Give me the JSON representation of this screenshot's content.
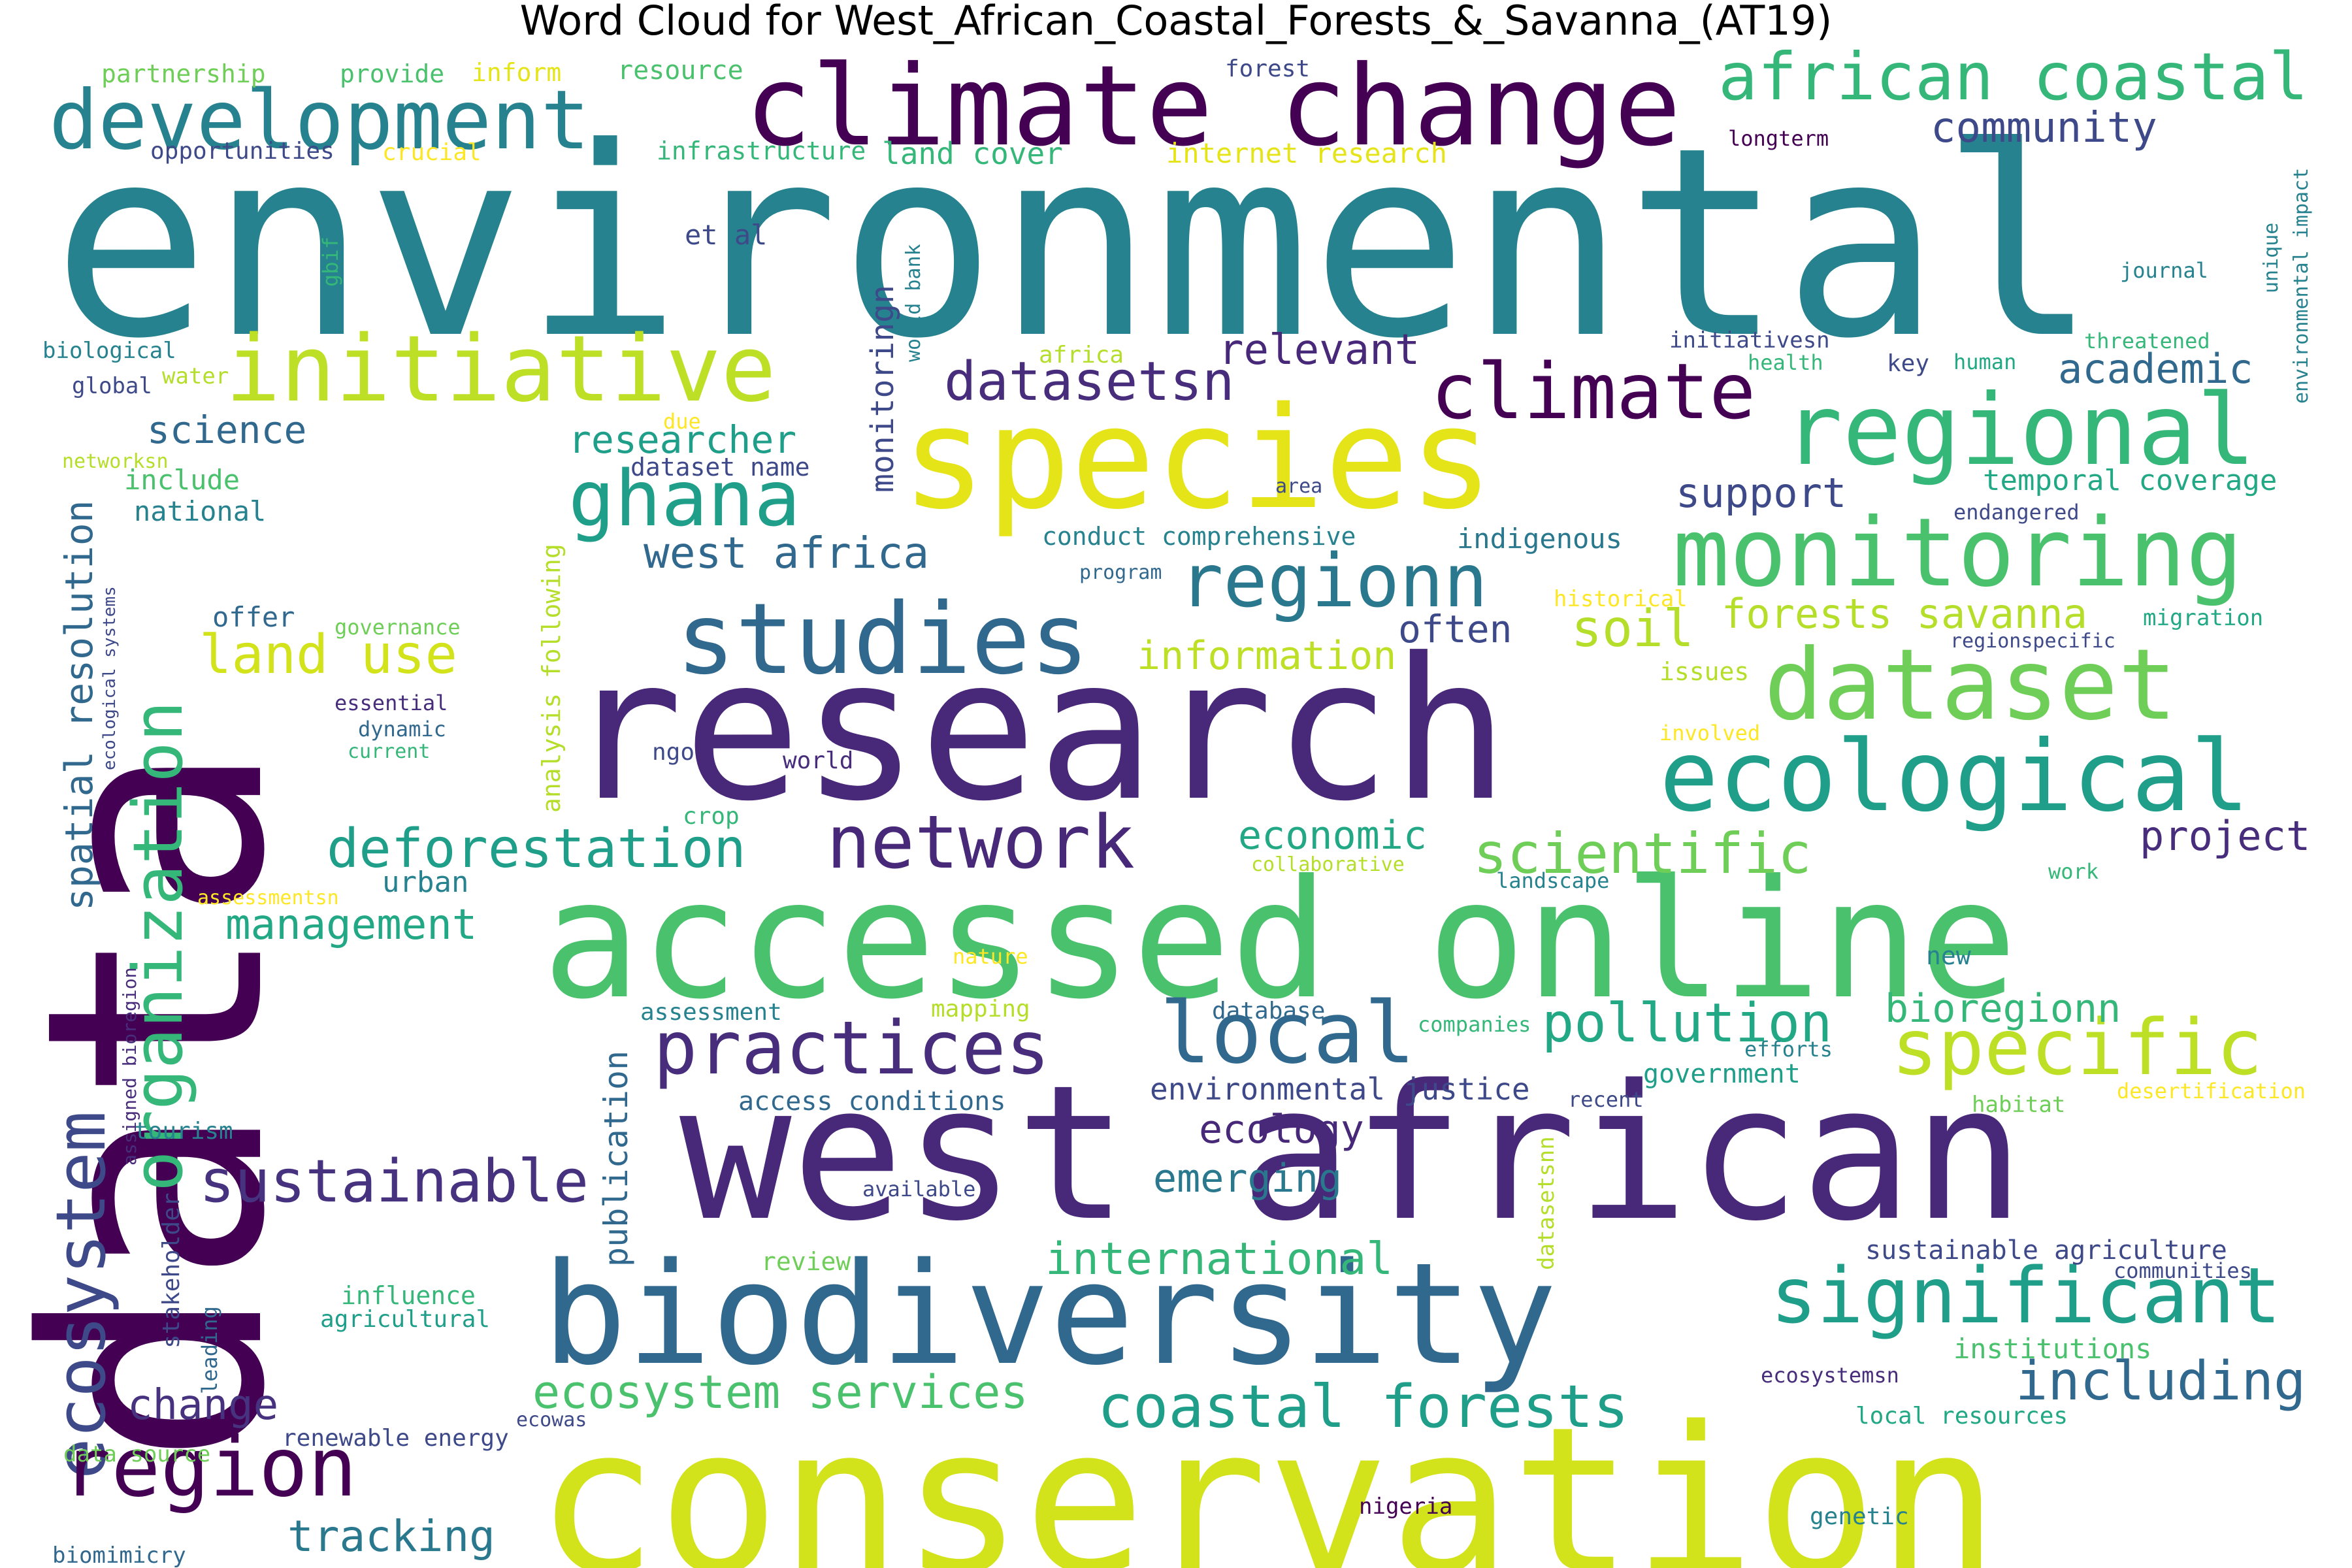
{
  "title": "Word Cloud for West_African_Coastal_Forests_&_Savanna_(AT19)",
  "palette": {
    "dark_purple": "#440154",
    "indigo": "#482878",
    "blue": "#3e4989",
    "steel_blue": "#31688e",
    "teal": "#26828e",
    "green_teal": "#1f9e89",
    "green": "#35b779",
    "light_green": "#6ece58",
    "yellow_green": "#b5de2b",
    "yellow": "#fde725"
  },
  "words": [
    {
      "text": "environmental",
      "color": "#26828e"
    },
    {
      "text": "data",
      "color": "#440154"
    },
    {
      "text": "research",
      "color": "#482878"
    },
    {
      "text": "accessed online",
      "color": "#4ac16d"
    },
    {
      "text": "conservation",
      "color": "#d2e21b"
    },
    {
      "text": "west african",
      "color": "#482878"
    },
    {
      "text": "biodiversity",
      "color": "#31688e"
    },
    {
      "text": "species",
      "color": "#e5e419"
    },
    {
      "text": "climate change",
      "color": "#440154"
    },
    {
      "text": "development",
      "color": "#26828e"
    },
    {
      "text": "initiative",
      "color": "#bddf26"
    },
    {
      "text": "regional",
      "color": "#35b779"
    },
    {
      "text": "monitoring",
      "color": "#4ac16d"
    },
    {
      "text": "dataset",
      "color": "#6ece58"
    },
    {
      "text": "ecological",
      "color": "#1f9e89"
    },
    {
      "text": "studies",
      "color": "#31688e"
    },
    {
      "text": "climate",
      "color": "#440154"
    },
    {
      "text": "african coastal",
      "color": "#35b779"
    },
    {
      "text": "regionn",
      "color": "#2a788e"
    },
    {
      "text": "ghana",
      "color": "#1f9e89"
    },
    {
      "text": "organization",
      "color": "#35b779"
    },
    {
      "text": "ecosystem",
      "color": "#3e4989"
    },
    {
      "text": "network",
      "color": "#482878"
    },
    {
      "text": "practices",
      "color": "#472d7b"
    },
    {
      "text": "local",
      "color": "#31688e"
    },
    {
      "text": "specific",
      "color": "#bddf26"
    },
    {
      "text": "significant",
      "color": "#1f9e89"
    },
    {
      "text": "region",
      "color": "#440154"
    },
    {
      "text": "sustainable",
      "color": "#46327e"
    },
    {
      "text": "coastal forests",
      "color": "#1f9e89"
    },
    {
      "text": "including",
      "color": "#31688e"
    },
    {
      "text": "ecosystem services",
      "color": "#4ac16d"
    },
    {
      "text": "land use",
      "color": "#d2e21b"
    },
    {
      "text": "deforestation",
      "color": "#1f9e89"
    },
    {
      "text": "scientific",
      "color": "#6ece58"
    },
    {
      "text": "datasetsn",
      "color": "#472d7b"
    },
    {
      "text": "spatial resolution",
      "color": "#31688e"
    },
    {
      "text": "soil",
      "color": "#b5de2b"
    },
    {
      "text": "pollution",
      "color": "#22a884"
    },
    {
      "text": "forests savanna",
      "color": "#b5de2b"
    },
    {
      "text": "international",
      "color": "#35b779"
    },
    {
      "text": "tracking",
      "color": "#2a788e"
    },
    {
      "text": "change",
      "color": "#46327e"
    },
    {
      "text": "management",
      "color": "#22a884"
    },
    {
      "text": "west africa",
      "color": "#31688e"
    },
    {
      "text": "researcher",
      "color": "#1f9e89"
    },
    {
      "text": "relevant",
      "color": "#482878"
    },
    {
      "text": "academic",
      "color": "#31688e"
    },
    {
      "text": "community",
      "color": "#3e4989"
    },
    {
      "text": "support",
      "color": "#3e4989"
    },
    {
      "text": "project",
      "color": "#472d7b"
    },
    {
      "text": "information",
      "color": "#bddf26"
    },
    {
      "text": "economic",
      "color": "#22a884"
    },
    {
      "text": "emerging",
      "color": "#2a788e"
    },
    {
      "text": "ecology",
      "color": "#482878"
    },
    {
      "text": "bioregionn",
      "color": "#35b779"
    },
    {
      "text": "often",
      "color": "#3e4989"
    },
    {
      "text": "publication",
      "color": "#31688e"
    },
    {
      "text": "science",
      "color": "#31688e"
    },
    {
      "text": "monitoringn",
      "color": "#3e4989"
    },
    {
      "text": "environmental justice",
      "color": "#3e4989"
    },
    {
      "text": "land cover",
      "color": "#35b779"
    },
    {
      "text": "temporal coverage",
      "color": "#22a884"
    },
    {
      "text": "urban",
      "color": "#26828e"
    },
    {
      "text": "access conditions",
      "color": "#31688e"
    },
    {
      "text": "indigenous",
      "color": "#2a788e"
    },
    {
      "text": "internet research",
      "color": "#e5e419"
    },
    {
      "text": "dataset name",
      "color": "#3e4989"
    },
    {
      "text": "national",
      "color": "#26828e"
    },
    {
      "text": "include",
      "color": "#4ac16d"
    },
    {
      "text": "offer",
      "color": "#31688e"
    },
    {
      "text": "conduct comprehensive",
      "color": "#26828e"
    },
    {
      "text": "analysis following",
      "color": "#b5de2b"
    },
    {
      "text": "sustainable agriculture",
      "color": "#3e4989"
    },
    {
      "text": "et al",
      "color": "#3e4989"
    },
    {
      "text": "government",
      "color": "#1f9e89"
    },
    {
      "text": "infrastructure",
      "color": "#35b779"
    },
    {
      "text": "resource",
      "color": "#4ac16d"
    },
    {
      "text": "provide",
      "color": "#4ac16d"
    },
    {
      "text": "partnership",
      "color": "#6ece58"
    },
    {
      "text": "inform",
      "color": "#e5e419"
    },
    {
      "text": "opportunities",
      "color": "#3e4989"
    },
    {
      "text": "crucial",
      "color": "#fde725"
    },
    {
      "text": "forest",
      "color": "#3e4989"
    },
    {
      "text": "longterm",
      "color": "#440154"
    },
    {
      "text": "institutions",
      "color": "#4ac16d"
    },
    {
      "text": "influence",
      "color": "#35b779"
    },
    {
      "text": "agricultural",
      "color": "#1f9e89"
    },
    {
      "text": "renewable energy",
      "color": "#3e4989"
    },
    {
      "text": "stakeholder",
      "color": "#3e4989"
    },
    {
      "text": "tourism",
      "color": "#26828e"
    },
    {
      "text": "data source",
      "color": "#6ece58"
    },
    {
      "text": "biomimicry",
      "color": "#31688e"
    },
    {
      "text": "ecowas",
      "color": "#3e4989"
    },
    {
      "text": "nigeria",
      "color": "#440154"
    },
    {
      "text": "genetic",
      "color": "#26828e"
    },
    {
      "text": "local resources",
      "color": "#22a884"
    },
    {
      "text": "ecosystemsn",
      "color": "#472d7b"
    },
    {
      "text": "communities",
      "color": "#3e4989"
    },
    {
      "text": "review",
      "color": "#6ece58"
    },
    {
      "text": "available",
      "color": "#3e4989"
    },
    {
      "text": "datasetsnn",
      "color": "#b5de2b"
    },
    {
      "text": "habitat",
      "color": "#6ece58"
    },
    {
      "text": "desertification",
      "color": "#fde725"
    },
    {
      "text": "recent",
      "color": "#3e4989"
    },
    {
      "text": "efforts",
      "color": "#26828e"
    },
    {
      "text": "companies",
      "color": "#35b779"
    },
    {
      "text": "database",
      "color": "#31688e"
    },
    {
      "text": "mapping",
      "color": "#b5de2b"
    },
    {
      "text": "assessment",
      "color": "#26828e"
    },
    {
      "text": "nature",
      "color": "#fde725"
    },
    {
      "text": "new",
      "color": "#26828e"
    },
    {
      "text": "work",
      "color": "#35b779"
    },
    {
      "text": "landscape",
      "color": "#26828e"
    },
    {
      "text": "collaborative",
      "color": "#b5de2b"
    },
    {
      "text": "crop",
      "color": "#35b779"
    },
    {
      "text": "ngo",
      "color": "#3e4989"
    },
    {
      "text": "world",
      "color": "#472d7b"
    },
    {
      "text": "involved",
      "color": "#fde725"
    },
    {
      "text": "issues",
      "color": "#b5de2b"
    },
    {
      "text": "regionspecific",
      "color": "#3e4989"
    },
    {
      "text": "migration",
      "color": "#22a884"
    },
    {
      "text": "historical",
      "color": "#fde725"
    },
    {
      "text": "program",
      "color": "#31688e"
    },
    {
      "text": "area",
      "color": "#3e4989"
    },
    {
      "text": "endangered",
      "color": "#3e4989"
    },
    {
      "text": "governance",
      "color": "#6ece58"
    },
    {
      "text": "essential",
      "color": "#472d7b"
    },
    {
      "text": "dynamic",
      "color": "#31688e"
    },
    {
      "text": "current",
      "color": "#35b779"
    },
    {
      "text": "assessmentsn",
      "color": "#fde725"
    },
    {
      "text": "assigned bioregion",
      "color": "#472d7b"
    },
    {
      "text": "leading",
      "color": "#31688e"
    },
    {
      "text": "ecological systems",
      "color": "#3e4989"
    },
    {
      "text": "networksn",
      "color": "#b5de2b"
    },
    {
      "text": "due",
      "color": "#fde725"
    },
    {
      "text": "africa",
      "color": "#b5de2b"
    },
    {
      "text": "water",
      "color": "#b5de2b"
    },
    {
      "text": "biological",
      "color": "#26828e"
    },
    {
      "text": "global",
      "color": "#3e4989"
    },
    {
      "text": "gbif",
      "color": "#35b779"
    },
    {
      "text": "world bank",
      "color": "#26828e"
    },
    {
      "text": "initiativesn",
      "color": "#3e4989"
    },
    {
      "text": "health",
      "color": "#35b779"
    },
    {
      "text": "key",
      "color": "#3e4989"
    },
    {
      "text": "human",
      "color": "#22a884"
    },
    {
      "text": "threatened",
      "color": "#35b779"
    },
    {
      "text": "journal",
      "color": "#26828e"
    },
    {
      "text": "unique",
      "color": "#26828e"
    },
    {
      "text": "environmental impact",
      "color": "#26828e"
    }
  ]
}
